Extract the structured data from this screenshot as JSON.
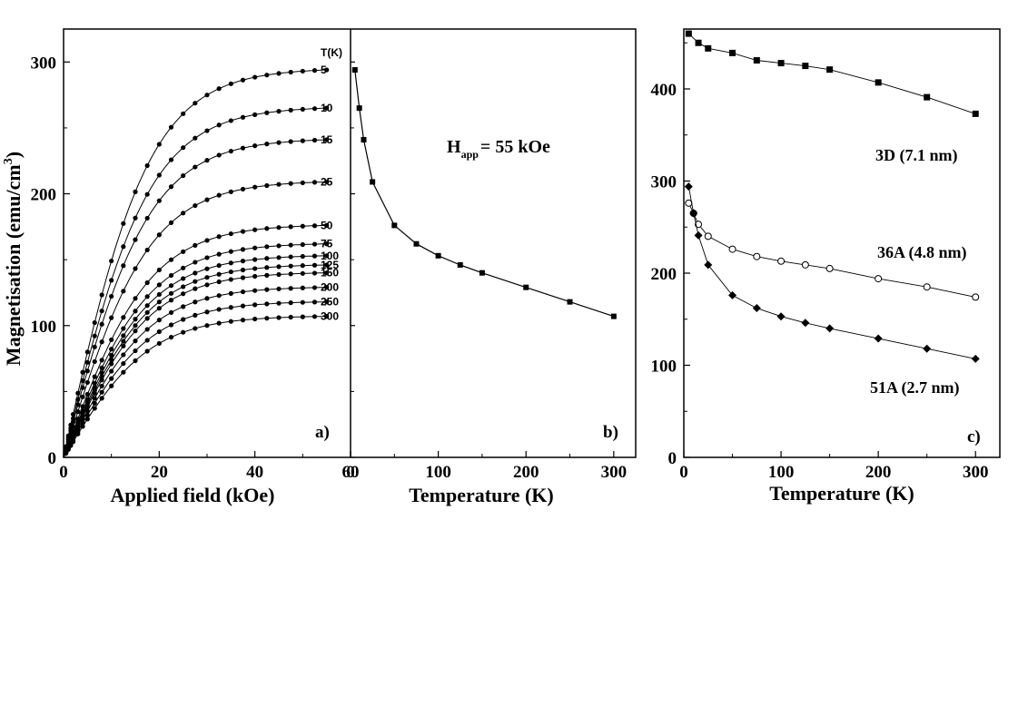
{
  "chart_data": [
    {
      "panel": "a)",
      "type": "line",
      "xlabel": "Applied field (kOe)",
      "ylabel": "Magnetisation (emu/cm",
      "ylabel_sup": "3",
      "ylabel_end": ")",
      "xlim": [
        0,
        60
      ],
      "ylim": [
        0,
        325
      ],
      "xticks": [
        "0",
        "20",
        "40",
        "60"
      ],
      "yticks": [
        "0",
        "100",
        "200",
        "300"
      ],
      "legend_title": "T(K)",
      "series": [
        {
          "name": "5",
          "value_at_55kOe": 294
        },
        {
          "name": "10",
          "value_at_55kOe": 265
        },
        {
          "name": "15",
          "value_at_55kOe": 241
        },
        {
          "name": "25",
          "value_at_55kOe": 209
        },
        {
          "name": "50",
          "value_at_55kOe": 176
        },
        {
          "name": "75",
          "value_at_55kOe": 162
        },
        {
          "name": "100",
          "value_at_55kOe": 153
        },
        {
          "name": "125",
          "value_at_55kOe": 146
        },
        {
          "name": "150",
          "value_at_55kOe": 140
        },
        {
          "name": "200",
          "value_at_55kOe": 129
        },
        {
          "name": "250",
          "value_at_55kOe": 118
        },
        {
          "name": "300",
          "value_at_55kOe": 107
        }
      ]
    },
    {
      "panel": "b)",
      "type": "line",
      "xlabel": "Temperature (K)",
      "xlim": [
        0,
        325
      ],
      "xticks": [
        "0",
        "100",
        "200",
        "300"
      ],
      "annotation_main": "H",
      "annotation_sub": "app",
      "annotation_rest": "= 55 kOe",
      "x": [
        5,
        10,
        15,
        25,
        50,
        75,
        100,
        125,
        150,
        200,
        250,
        300
      ],
      "y": [
        294,
        265,
        241,
        209,
        176,
        162,
        153,
        146,
        140,
        129,
        118,
        107
      ]
    },
    {
      "panel": "c)",
      "type": "line",
      "xlabel": "Temperature (K)",
      "xlim": [
        0,
        325
      ],
      "ylim": [
        0,
        465
      ],
      "xticks": [
        "0",
        "100",
        "200",
        "300"
      ],
      "yticks": [
        "0",
        "100",
        "200",
        "300",
        "400"
      ],
      "series": [
        {
          "name": "3D (7.1 nm)",
          "marker": "square",
          "x": [
            5,
            15,
            25,
            50,
            75,
            100,
            125,
            150,
            200,
            250,
            300
          ],
          "y": [
            460,
            450,
            444,
            439,
            431,
            428,
            425,
            421,
            407,
            391,
            373
          ]
        },
        {
          "name": "36A (4.8 nm)",
          "marker": "open-circle",
          "x": [
            5,
            10,
            15,
            25,
            50,
            75,
            100,
            125,
            150,
            200,
            250,
            300
          ],
          "y": [
            276,
            265,
            253,
            240,
            226,
            218,
            213,
            209,
            205,
            194,
            185,
            174
          ]
        },
        {
          "name": "51A (2.7 nm)",
          "marker": "diamond",
          "x": [
            5,
            10,
            15,
            25,
            50,
            75,
            100,
            125,
            150,
            200,
            250,
            300
          ],
          "y": [
            294,
            265,
            241,
            209,
            176,
            162,
            153,
            146,
            140,
            129,
            118,
            107
          ]
        }
      ]
    }
  ]
}
